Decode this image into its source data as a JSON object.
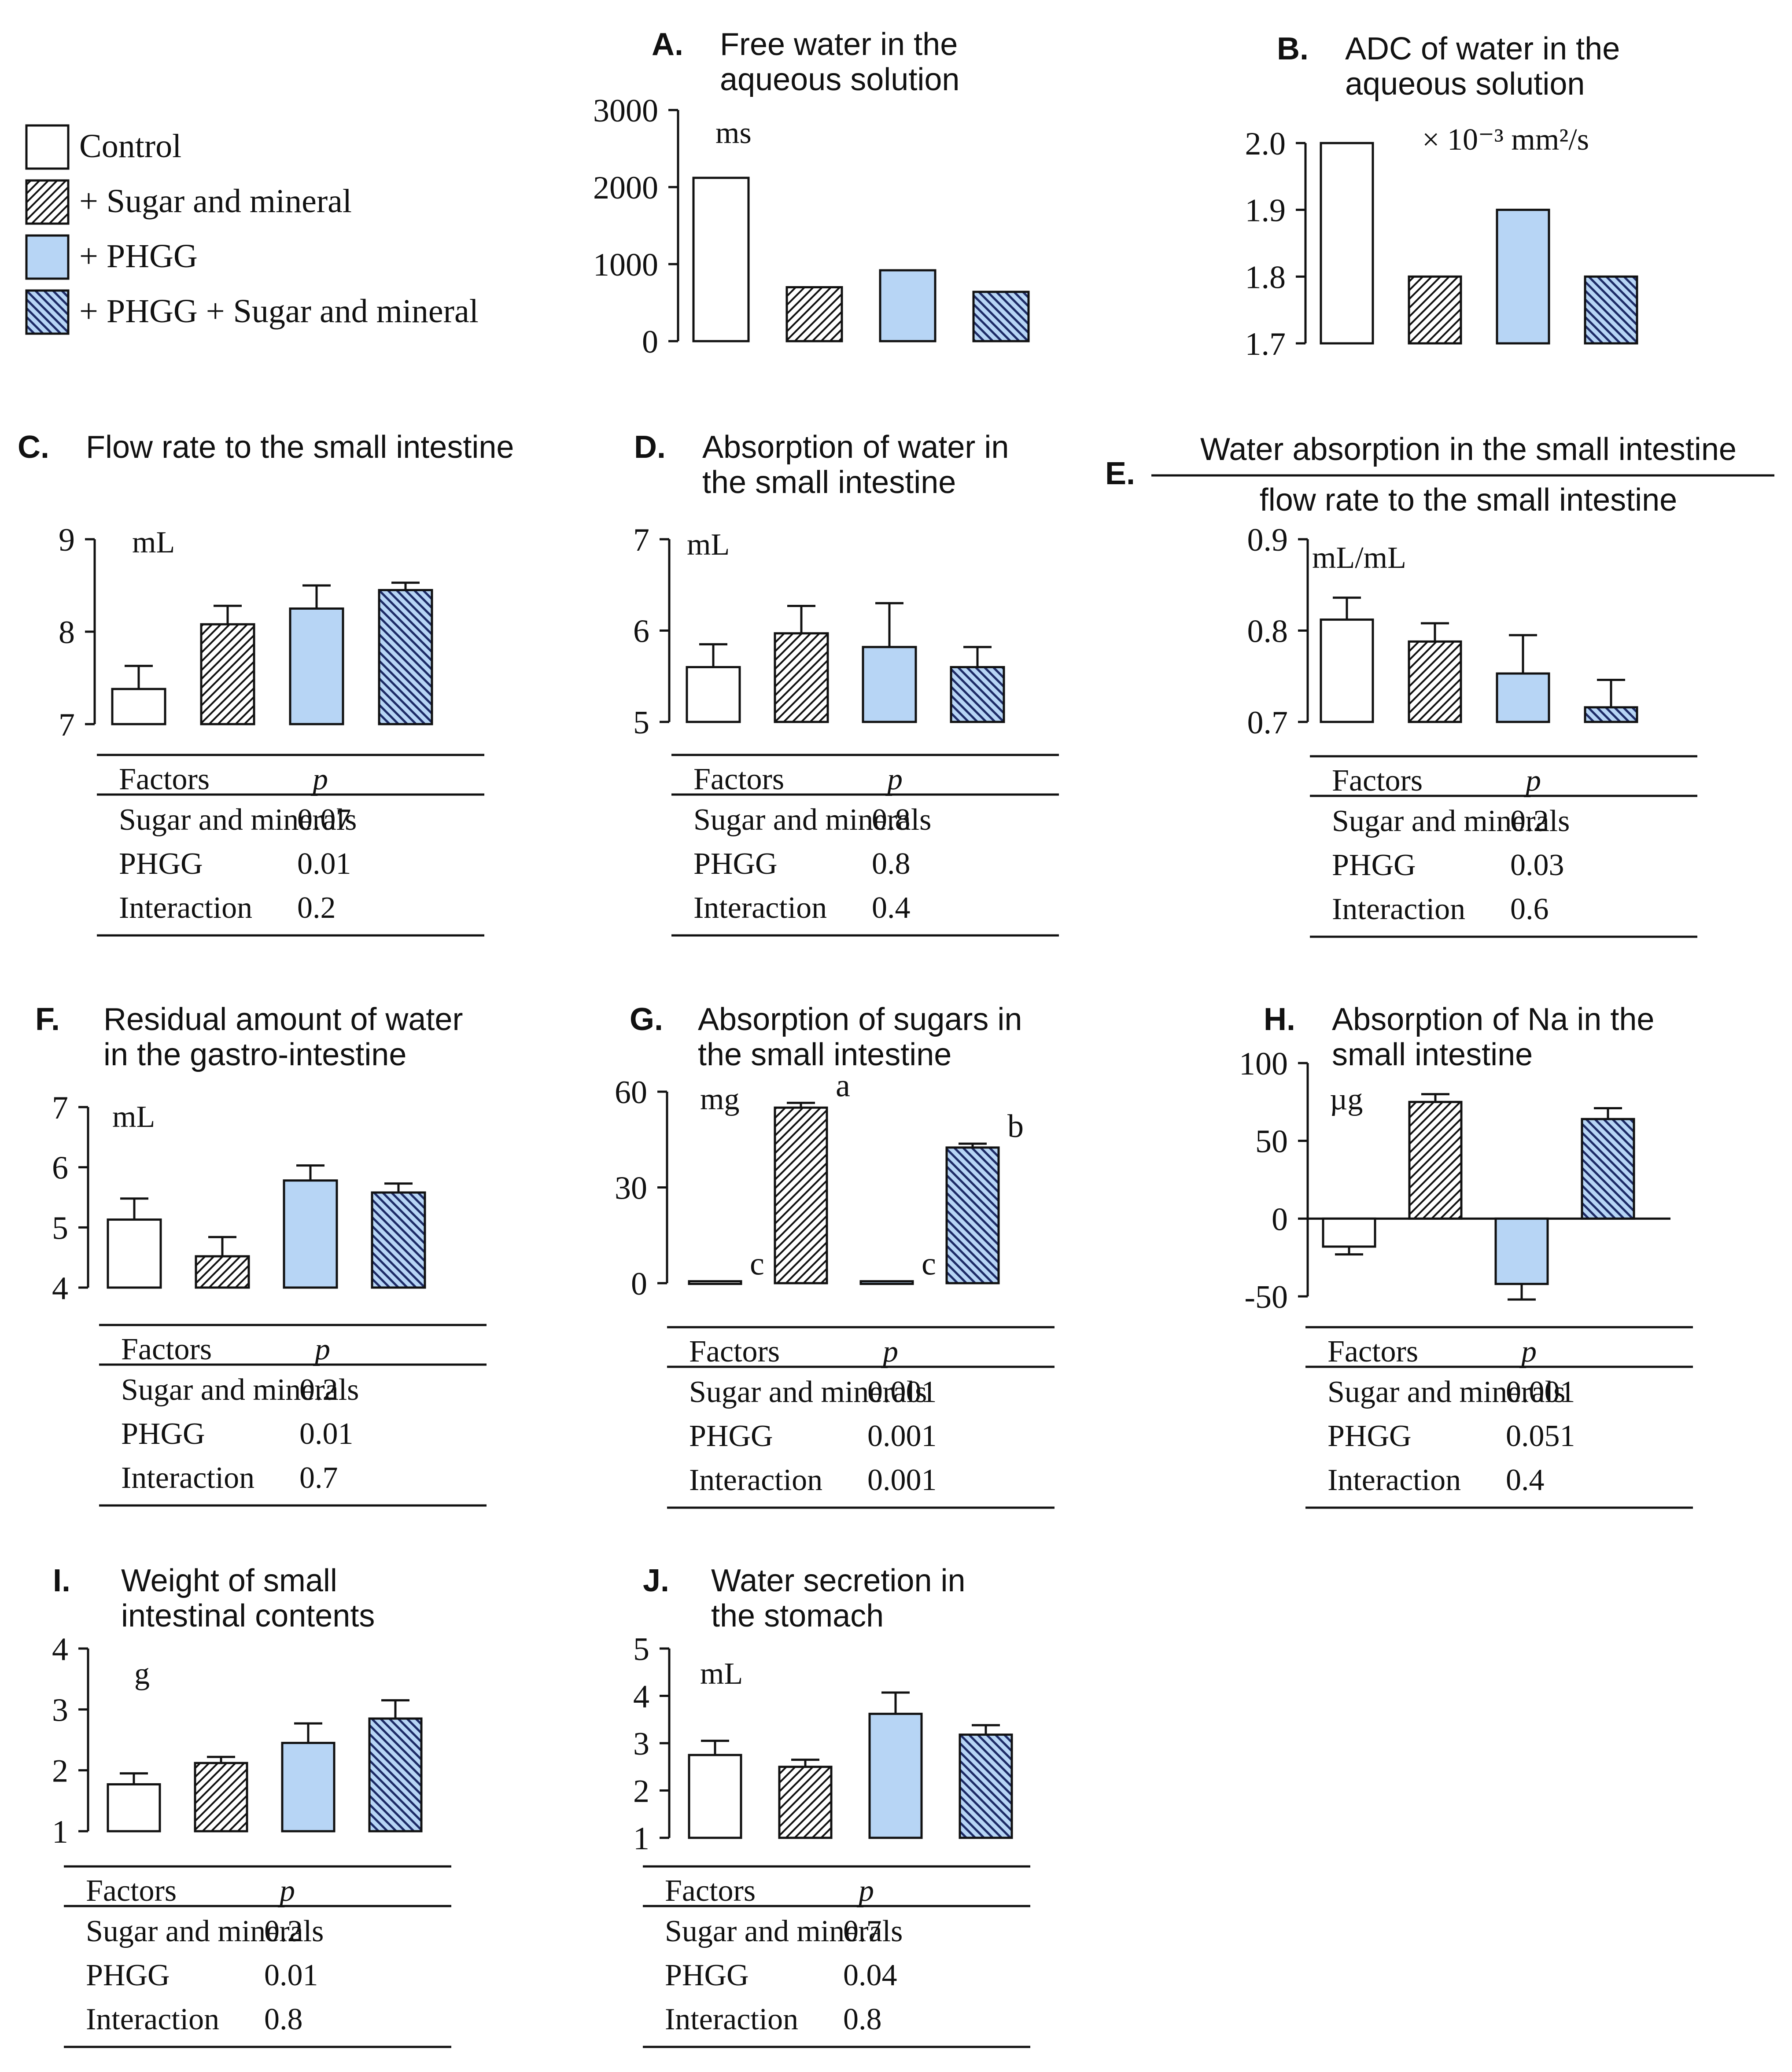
{
  "colors": {
    "control": "#ffffff",
    "phgg": "#b7d5f5",
    "ink": "#111111",
    "navy_hatch": "#1d2b66"
  },
  "legend": {
    "items": [
      {
        "label": "Control",
        "style": "control"
      },
      {
        "label": "+ Sugar and mineral",
        "style": "sugar"
      },
      {
        "label": "+ PHGG",
        "style": "phgg"
      },
      {
        "label": "+ PHGG + Sugar and mineral",
        "style": "phgg_sugar"
      }
    ]
  },
  "table_headers": {
    "factors": "Factors",
    "p": "p"
  },
  "chart_data": [
    {
      "type": "bar",
      "letter": "A.",
      "title": [
        "Free water in the",
        "aqueous solution"
      ],
      "unit": "ms",
      "ylim": [
        0,
        3000
      ],
      "ticks": [
        "0",
        "1000",
        "2000",
        "3000"
      ],
      "values": [
        2120,
        700,
        920,
        640
      ],
      "errors": null,
      "labels": null,
      "zero_line": false
    },
    {
      "type": "bar",
      "letter": "B.",
      "title": [
        "ADC of water  in the",
        "aqueous solution"
      ],
      "unit": "× 10⁻³ mm²/s",
      "ylim": [
        1.7,
        2.0
      ],
      "ticks": [
        "1.7",
        "1.8",
        "1.9",
        "2.0"
      ],
      "values": [
        2.0,
        1.8,
        1.9,
        1.8
      ],
      "errors": null,
      "labels": null,
      "zero_line": false
    },
    {
      "type": "bar",
      "letter": "C.",
      "title": [
        "Flow rate to the small intestine"
      ],
      "unit": "mL",
      "ylim": [
        7,
        9
      ],
      "ticks": [
        "7",
        "8",
        "9"
      ],
      "values": [
        7.38,
        8.08,
        8.25,
        8.45
      ],
      "errors": [
        0.25,
        0.2,
        0.25,
        0.08
      ],
      "labels": null,
      "zero_line": false,
      "table": [
        {
          "factor": "Sugar and minerals",
          "p": "0.07"
        },
        {
          "factor": "PHGG",
          "p": "0.01"
        },
        {
          "factor": "Interaction",
          "p": "0.2"
        }
      ]
    },
    {
      "type": "bar",
      "letter": "D.",
      "title": [
        "Absorption of water in",
        "the small intestine"
      ],
      "unit": "mL",
      "ylim": [
        5,
        7
      ],
      "ticks": [
        "5",
        "6",
        "7"
      ],
      "values": [
        5.6,
        5.97,
        5.82,
        5.6
      ],
      "errors": [
        0.25,
        0.3,
        0.48,
        0.22
      ],
      "labels": null,
      "zero_line": false,
      "table": [
        {
          "factor": "Sugar and minerals",
          "p": "0.8"
        },
        {
          "factor": "PHGG",
          "p": "0.8"
        },
        {
          "factor": "Interaction",
          "p": "0.4"
        }
      ]
    },
    {
      "type": "bar",
      "letter": "E.",
      "title": [
        "Water absorption in the small intestine",
        "flow rate to the small intestine"
      ],
      "fraction_title": true,
      "unit": "mL/mL",
      "ylim": [
        0.7,
        0.9
      ],
      "ticks": [
        "0.7",
        "0.8",
        "0.9"
      ],
      "values": [
        0.812,
        0.788,
        0.753,
        0.716
      ],
      "errors": [
        0.024,
        0.02,
        0.042,
        0.03
      ],
      "labels": null,
      "zero_line": false,
      "table": [
        {
          "factor": "Sugar and minerals",
          "p": "0.2"
        },
        {
          "factor": "PHGG",
          "p": "0.03"
        },
        {
          "factor": "Interaction",
          "p": "0.6"
        }
      ]
    },
    {
      "type": "bar",
      "letter": "F.",
      "title": [
        "Residual amount of water",
        "in the gastro-intestine"
      ],
      "unit": "mL",
      "ylim": [
        4,
        7
      ],
      "ticks": [
        "4",
        "5",
        "6",
        "7"
      ],
      "values": [
        5.13,
        4.52,
        5.78,
        5.58
      ],
      "errors": [
        0.35,
        0.32,
        0.25,
        0.15
      ],
      "labels": null,
      "zero_line": false,
      "table": [
        {
          "factor": "Sugar and minerals",
          "p": "0.2"
        },
        {
          "factor": "PHGG",
          "p": "0.01"
        },
        {
          "factor": "Interaction",
          "p": "0.7"
        }
      ]
    },
    {
      "type": "bar",
      "letter": "G.",
      "title": [
        "Absorption of sugars in",
        "the small intestine"
      ],
      "unit": "mg",
      "ylim": [
        0,
        60
      ],
      "ticks": [
        "0",
        "30",
        "60"
      ],
      "values": [
        0.6,
        55,
        0.6,
        42.5
      ],
      "errors": [
        0,
        1.5,
        0,
        1.2
      ],
      "labels": [
        "c",
        "a",
        "c",
        "b"
      ],
      "zero_line": false,
      "table": [
        {
          "factor": "Sugar and  minerals",
          "p": "0.001"
        },
        {
          "factor": "PHGG",
          "p": "0.001"
        },
        {
          "factor": "Interaction",
          "p": "0.001"
        }
      ]
    },
    {
      "type": "bar",
      "letter": "H.",
      "title": [
        "Absorption of Na in the",
        "small intestine"
      ],
      "unit": "µg",
      "ylim": [
        -50,
        100
      ],
      "ticks": [
        "-50",
        "0",
        "50",
        "100"
      ],
      "values": [
        -18,
        75,
        -42,
        64
      ],
      "errors": [
        5,
        5,
        10,
        7
      ],
      "labels": null,
      "zero_line": true,
      "table": [
        {
          "factor": "Sugar and minerals",
          "p": "0.001"
        },
        {
          "factor": "PHGG",
          "p": "0.051"
        },
        {
          "factor": "Interaction",
          "p": "0.4"
        }
      ]
    },
    {
      "type": "bar",
      "letter": "I.",
      "title": [
        "Weight of small",
        "intestinal contents"
      ],
      "unit": "g",
      "ylim": [
        1,
        4
      ],
      "ticks": [
        "1",
        "2",
        "3",
        "4"
      ],
      "values": [
        1.77,
        2.12,
        2.45,
        2.85
      ],
      "errors": [
        0.18,
        0.1,
        0.32,
        0.3
      ],
      "labels": null,
      "zero_line": false,
      "table": [
        {
          "factor": "Sugar and  minerals",
          "p": "0.2"
        },
        {
          "factor": "PHGG",
          "p": "0.01"
        },
        {
          "factor": "Interaction",
          "p": "0.8"
        }
      ]
    },
    {
      "type": "bar",
      "letter": "J.",
      "title": [
        "Water secretion in",
        "the stomach"
      ],
      "unit": "mL",
      "ylim": [
        1,
        5
      ],
      "ticks": [
        "1",
        "2",
        "3",
        "4",
        "5"
      ],
      "values": [
        2.75,
        2.5,
        3.62,
        3.18
      ],
      "errors": [
        0.3,
        0.15,
        0.45,
        0.2
      ],
      "labels": null,
      "zero_line": false,
      "table": [
        {
          "factor": "Sugar and  minerals",
          "p": "0.7"
        },
        {
          "factor": "PHGG",
          "p": "0.04"
        },
        {
          "factor": "Interaction",
          "p": "0.8"
        }
      ]
    }
  ]
}
